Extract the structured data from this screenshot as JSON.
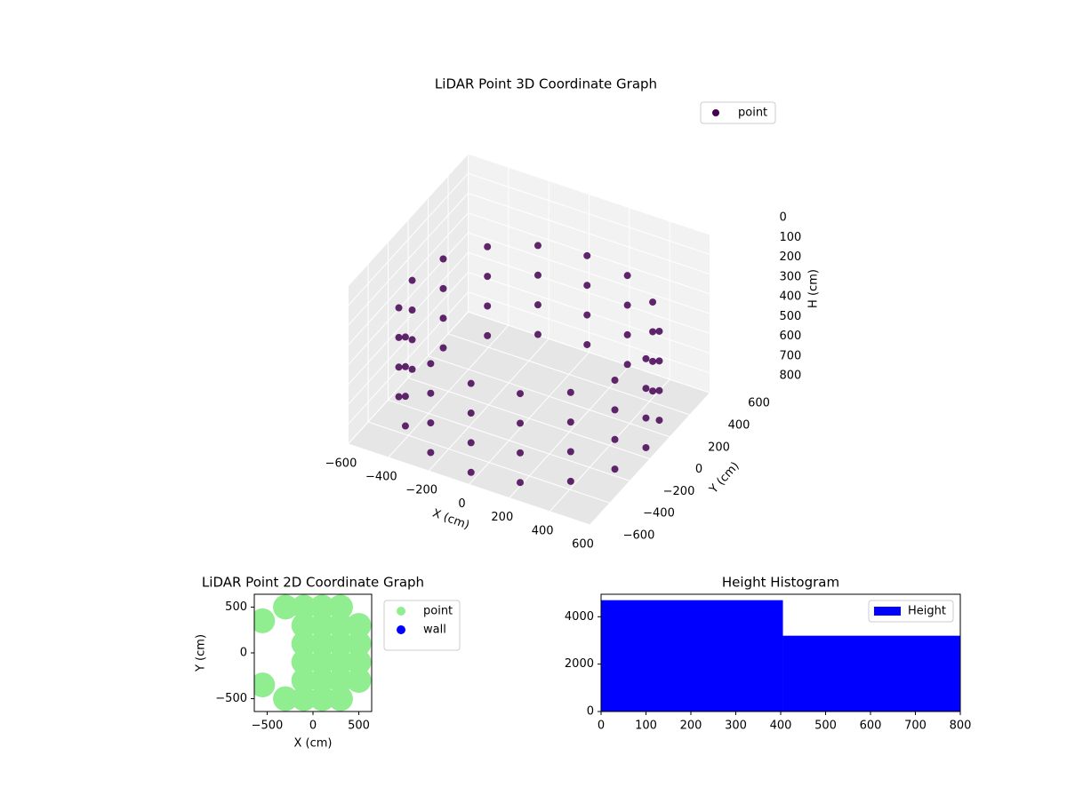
{
  "chart_data": [
    {
      "type": "scatter3d",
      "title": "LiDAR Point 3D Coordinate Graph",
      "xlabel": "X (cm)",
      "ylabel": "Y (cm)",
      "zlabel": "H (cm)",
      "xlim": [
        -600,
        600
      ],
      "ylim": [
        -600,
        600
      ],
      "zlim": [
        0,
        800
      ],
      "z_inverted": true,
      "legend": "upper right",
      "xticks": [
        {
          "value": -600,
          "label": "−600"
        },
        {
          "value": -400,
          "label": "−400"
        },
        {
          "value": -200,
          "label": "−200"
        },
        0,
        200,
        400,
        600
      ],
      "yticks": [
        {
          "value": -600,
          "label": "−600"
        },
        {
          "value": -400,
          "label": "−400"
        },
        {
          "value": -200,
          "label": "−200"
        },
        0,
        200,
        400,
        600
      ],
      "zticks": [
        0,
        100,
        200,
        300,
        400,
        500,
        600,
        700,
        800
      ],
      "series": [
        {
          "name": "point",
          "color": "#440154",
          "x": [
            580,
            536,
            410,
            222,
            0,
            -222,
            -410,
            -536,
            -580,
            -536,
            -410,
            -222,
            0,
            222,
            410,
            536,
            580,
            536,
            410,
            222,
            0,
            -222,
            -410,
            -536,
            -580,
            -536,
            -410,
            -222,
            0,
            222,
            410,
            536,
            580,
            536,
            410,
            222,
            0,
            -222,
            -410,
            -536,
            -580,
            -536,
            -410,
            -222,
            0,
            222,
            410,
            536,
            580,
            536,
            410,
            222,
            0,
            -222,
            -410,
            -536,
            -580,
            -536,
            -410,
            -222,
            0,
            222,
            410,
            536
          ],
          "y": [
            0,
            222,
            410,
            536,
            580,
            536,
            410,
            222,
            0,
            -222,
            -410,
            -536,
            -580,
            -536,
            -410,
            -222,
            0,
            222,
            410,
            536,
            580,
            536,
            410,
            222,
            0,
            -222,
            -410,
            -536,
            -580,
            -536,
            -410,
            -222,
            0,
            222,
            410,
            536,
            580,
            536,
            410,
            222,
            0,
            -222,
            -410,
            -536,
            -580,
            -536,
            -410,
            -222,
            0,
            222,
            410,
            536,
            580,
            536,
            410,
            222,
            0,
            -222,
            -410,
            -536,
            -580,
            -536,
            -410,
            -222
          ],
          "values": [
            300,
            300,
            300,
            300,
            300,
            300,
            300,
            300,
            300,
            300,
            300,
            300,
            300,
            300,
            300,
            300,
            450,
            450,
            450,
            450,
            450,
            450,
            450,
            450,
            450,
            450,
            450,
            450,
            450,
            450,
            450,
            450,
            600,
            600,
            600,
            600,
            600,
            600,
            600,
            600,
            600,
            600,
            600,
            600,
            600,
            600,
            600,
            600,
            750,
            750,
            750,
            750,
            750,
            750,
            750,
            750,
            750,
            750,
            750,
            750,
            750,
            750,
            750,
            750
          ]
        }
      ]
    },
    {
      "type": "scatter",
      "title": "LiDAR Point 2D Coordinate Graph",
      "xlabel": "X (cm)",
      "ylabel": "Y (cm)",
      "xlim": [
        -640,
        640
      ],
      "ylim": [
        -640,
        640
      ],
      "legend": "outside right",
      "xticks": [
        {
          "value": -500,
          "label": "−500"
        },
        0,
        500
      ],
      "yticks": [
        {
          "value": -500,
          "label": "−500"
        },
        0,
        500
      ],
      "series": [
        {
          "name": "point",
          "color": "#90ee90",
          "x": [
            -550,
            -550,
            -300,
            -300,
            -100,
            -100,
            -100,
            -100,
            -100,
            -100,
            100,
            100,
            100,
            100,
            100,
            100,
            300,
            300,
            300,
            300,
            300,
            300,
            500,
            500,
            500,
            500
          ],
          "values": [
            350,
            -350,
            500,
            -500,
            -500,
            -300,
            -100,
            100,
            300,
            500,
            -500,
            -300,
            -100,
            100,
            300,
            500,
            -500,
            -300,
            -100,
            100,
            300,
            500,
            -300,
            -100,
            100,
            300
          ]
        },
        {
          "name": "wall",
          "color": "#0000ff",
          "x": [],
          "values": []
        }
      ]
    },
    {
      "type": "histogram",
      "title": "Height Histogram",
      "bins": [
        0,
        405,
        800
      ],
      "xlim": [
        0,
        800
      ],
      "ylim": [
        0,
        4950
      ],
      "xticks": [
        0,
        100,
        200,
        300,
        400,
        500,
        600,
        700,
        800
      ],
      "yticks": [
        0,
        2000,
        4000
      ],
      "legend": "upper right",
      "series": [
        {
          "name": "Height",
          "color": "#0000ff",
          "values": [
            4700,
            3200
          ]
        }
      ]
    }
  ]
}
